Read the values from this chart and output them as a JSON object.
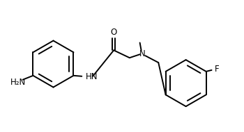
{
  "background_color": "#ffffff",
  "line_color": "#000000",
  "text_color": "#000000",
  "label_F": "F",
  "label_O": "O",
  "label_HN": "HN",
  "label_N": "N",
  "label_NH2": "H₂N",
  "figsize": [
    3.5,
    1.9
  ],
  "dpi": 100,
  "lw": 1.4
}
